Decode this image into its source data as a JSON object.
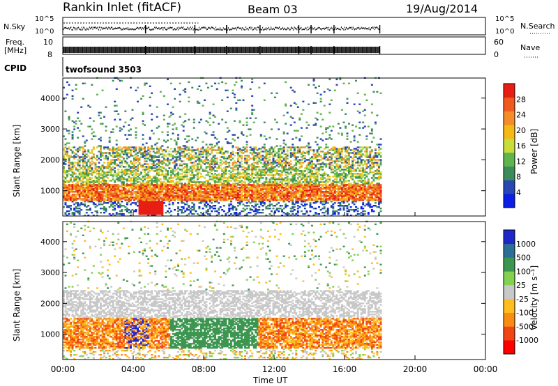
{
  "header": {
    "station": "Rankin Inlet (fitACF)",
    "beam": "Beam 03",
    "date": "19/Aug/2014"
  },
  "status_panels": {
    "nsky_label": "N.Sky",
    "nsky_ticks": [
      "10^5",
      "10^0"
    ],
    "nsearch_label": "N.Search",
    "nsearch_ticks": [
      "10^5",
      "10^0"
    ],
    "freq_label": "Freq.",
    "freq_unit": "[MHz]",
    "freq_ticks": [
      "10",
      "8"
    ],
    "nave_label": "Nave",
    "nave_ticks": [
      "60",
      "0"
    ],
    "cpid_label": "CPID",
    "cpid_value": "twofsound 3503"
  },
  "colorbar_colors": {
    "power": [
      "#0a1ee6",
      "#2846b4",
      "#3c8c5a",
      "#5fb44b",
      "#c8dc3c",
      "#f5b914",
      "#f58c28",
      "#f05a1e",
      "#e61e14"
    ],
    "velocity": [
      "#ff0000",
      "#f04614",
      "#fa8c14",
      "#ffbe1e",
      "#c8c8c8",
      "#82d250",
      "#3c9650",
      "#2d6e96",
      "#1e28c8"
    ]
  },
  "chart_data": [
    {
      "type": "heatmap",
      "name": "Power",
      "xlabel": "",
      "ylabel": "Slant Range [km]",
      "x_ticks": [
        "00:00",
        "04:00",
        "08:00",
        "12:00",
        "16:00",
        "20:00",
        "00:00"
      ],
      "y_ticks": [
        "1000",
        "2000",
        "3000",
        "4000"
      ],
      "ylim": [
        180,
        4650
      ],
      "xlim_hours": [
        0,
        24
      ],
      "data_end_hour": 18,
      "colorbar_label": "Power [dB]",
      "colorbar_ticks": [
        "4",
        "8",
        "12",
        "16",
        "20",
        "24",
        "28"
      ],
      "bands": [
        {
          "x_range": [
            0,
            18
          ],
          "y_range": [
            650,
            1200
          ],
          "level": "high"
        },
        {
          "x_range": [
            0,
            18
          ],
          "y_range": [
            1200,
            1700
          ],
          "level": "medium"
        },
        {
          "x_range": [
            0,
            18
          ],
          "y_range": [
            1700,
            2400
          ],
          "level": "medium"
        },
        {
          "x_range": [
            4.3,
            5.6
          ],
          "y_range": [
            200,
            700
          ],
          "level": "high"
        }
      ]
    },
    {
      "type": "heatmap",
      "name": "Velocity",
      "xlabel": "Time UT",
      "ylabel": "Slant Range [km]",
      "x_ticks": [
        "00:00",
        "04:00",
        "08:00",
        "12:00",
        "16:00",
        "20:00",
        "00:00"
      ],
      "y_ticks": [
        "1000",
        "2000",
        "3000",
        "4000"
      ],
      "ylim": [
        180,
        4650
      ],
      "xlim_hours": [
        0,
        24
      ],
      "data_end_hour": 18,
      "colorbar_label": "Velocity [m s⁻¹]",
      "colorbar_ticks": [
        "1000",
        "500",
        "100",
        "25",
        "-25",
        "-100",
        "-500",
        "-1000"
      ],
      "bands": [
        {
          "x_range": [
            0,
            6
          ],
          "y_range": [
            600,
            1500
          ],
          "level": "toward"
        },
        {
          "x_range": [
            6,
            11
          ],
          "y_range": [
            800,
            1500
          ],
          "level": "away"
        },
        {
          "x_range": [
            11,
            18
          ],
          "y_range": [
            500,
            1400
          ],
          "level": "toward"
        },
        {
          "x_range": [
            0,
            18
          ],
          "y_range": [
            1500,
            2400
          ],
          "level": "ground"
        }
      ]
    }
  ]
}
